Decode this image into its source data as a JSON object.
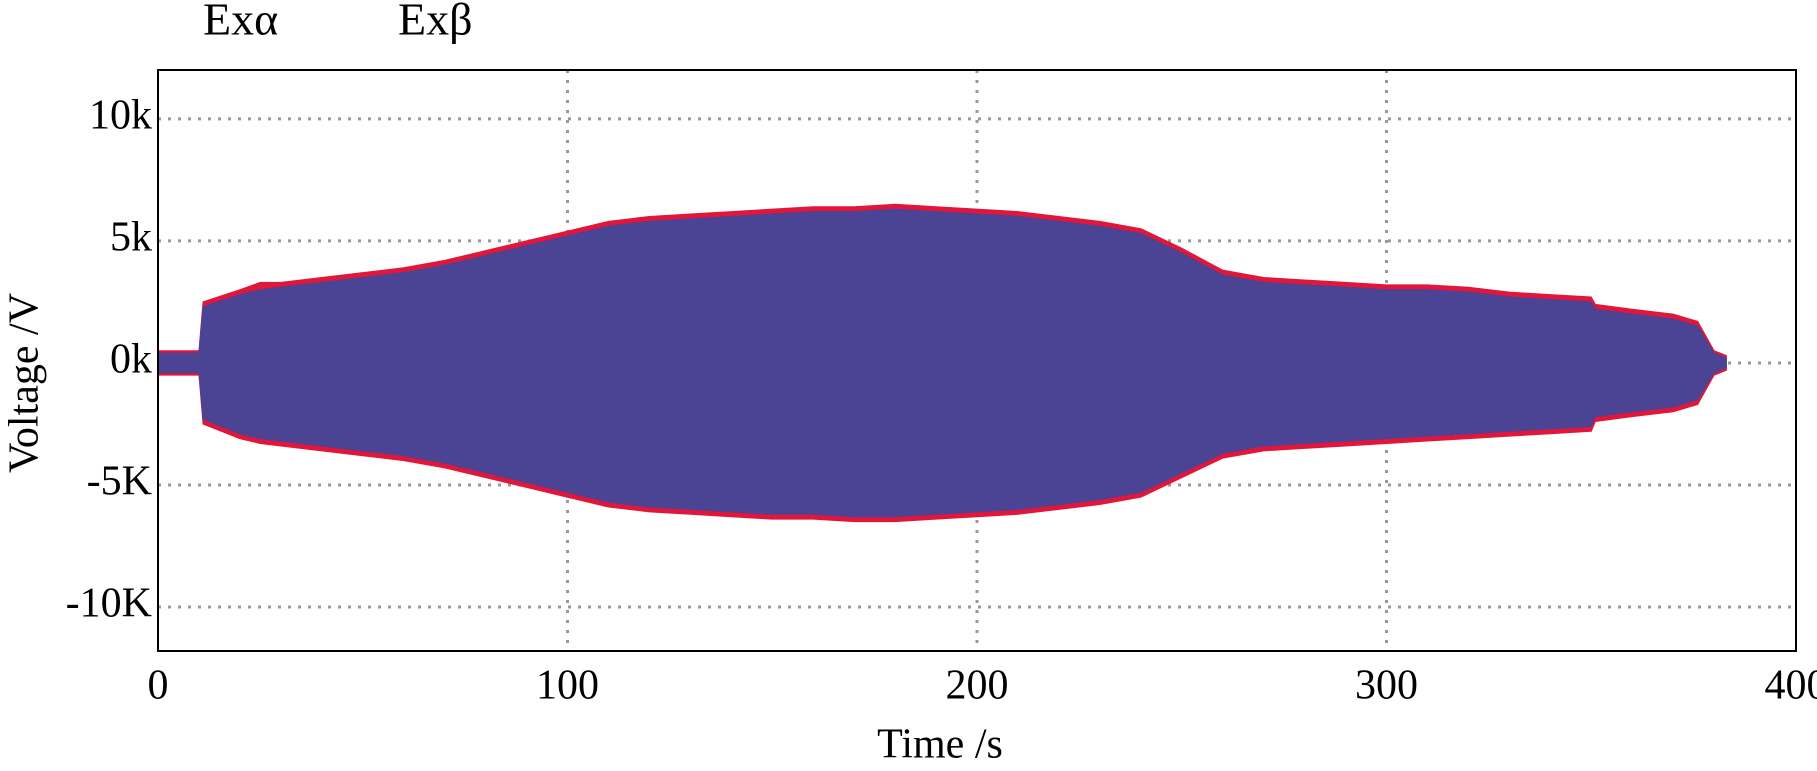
{
  "chart_data": {
    "type": "envelope",
    "x_label": "Time /s",
    "y_label": "Voltage /V",
    "x": [
      0,
      10,
      11,
      20,
      25,
      30,
      40,
      50,
      60,
      70,
      80,
      90,
      100,
      110,
      120,
      130,
      140,
      150,
      160,
      170,
      180,
      190,
      200,
      210,
      220,
      230,
      240,
      250,
      260,
      270,
      280,
      290,
      300,
      310,
      320,
      330,
      340,
      350,
      351,
      360,
      370,
      376,
      380,
      383
    ],
    "series": [
      {
        "name": "Exα",
        "color": "#e0163a",
        "values": [
          500,
          500,
          2500,
          3000,
          3300,
          3300,
          3500,
          3700,
          3900,
          4200,
          4600,
          5000,
          5400,
          5800,
          6000,
          6100,
          6200,
          6300,
          6400,
          6400,
          6500,
          6400,
          6300,
          6200,
          6000,
          5800,
          5500,
          4700,
          3800,
          3500,
          3400,
          3300,
          3200,
          3200,
          3100,
          2900,
          2800,
          2700,
          2400,
          2200,
          2000,
          1700,
          500,
          300
        ],
        "lows": [
          -500,
          -500,
          -2500,
          -3100,
          -3300,
          -3400,
          -3600,
          -3800,
          -4000,
          -4300,
          -4700,
          -5100,
          -5500,
          -5900,
          -6100,
          -6200,
          -6300,
          -6400,
          -6400,
          -6500,
          -6500,
          -6400,
          -6300,
          -6200,
          -6000,
          -5800,
          -5500,
          -4700,
          -3900,
          -3600,
          -3500,
          -3400,
          -3300,
          -3200,
          -3100,
          -3000,
          -2900,
          -2800,
          -2400,
          -2200,
          -2000,
          -1700,
          -500,
          -300
        ]
      },
      {
        "name": "Exβ",
        "color": "#4b4393",
        "values": [
          400,
          400,
          2300,
          2800,
          3000,
          3100,
          3300,
          3500,
          3700,
          4000,
          4400,
          4800,
          5200,
          5600,
          5800,
          5900,
          6000,
          6100,
          6200,
          6200,
          6300,
          6200,
          6100,
          6000,
          5800,
          5600,
          5300,
          4500,
          3600,
          3300,
          3200,
          3100,
          3000,
          3000,
          2900,
          2700,
          2600,
          2500,
          2200,
          2000,
          1800,
          1500,
          400,
          200
        ],
        "lows": [
          -400,
          -400,
          -2300,
          -2900,
          -3100,
          -3200,
          -3400,
          -3600,
          -3800,
          -4100,
          -4500,
          -4900,
          -5300,
          -5700,
          -5900,
          -6000,
          -6100,
          -6200,
          -6200,
          -6300,
          -6300,
          -6200,
          -6100,
          -6000,
          -5800,
          -5600,
          -5300,
          -4500,
          -3700,
          -3400,
          -3300,
          -3200,
          -3100,
          -3000,
          -2900,
          -2800,
          -2700,
          -2600,
          -2200,
          -2000,
          -1800,
          -1500,
          -400,
          -200
        ]
      }
    ],
    "xlim": [
      0,
      400
    ],
    "xticks": [
      0,
      100,
      200,
      300,
      400
    ],
    "ylim": [
      -11800,
      12000
    ],
    "yticks": [
      {
        "value": 10000,
        "label": "10k"
      },
      {
        "value": 5000,
        "label": "5k"
      },
      {
        "value": 0,
        "label": "0k"
      },
      {
        "value": -5000,
        "label": "-5K"
      },
      {
        "value": -10000,
        "label": "-10K"
      }
    ],
    "grid": true
  }
}
